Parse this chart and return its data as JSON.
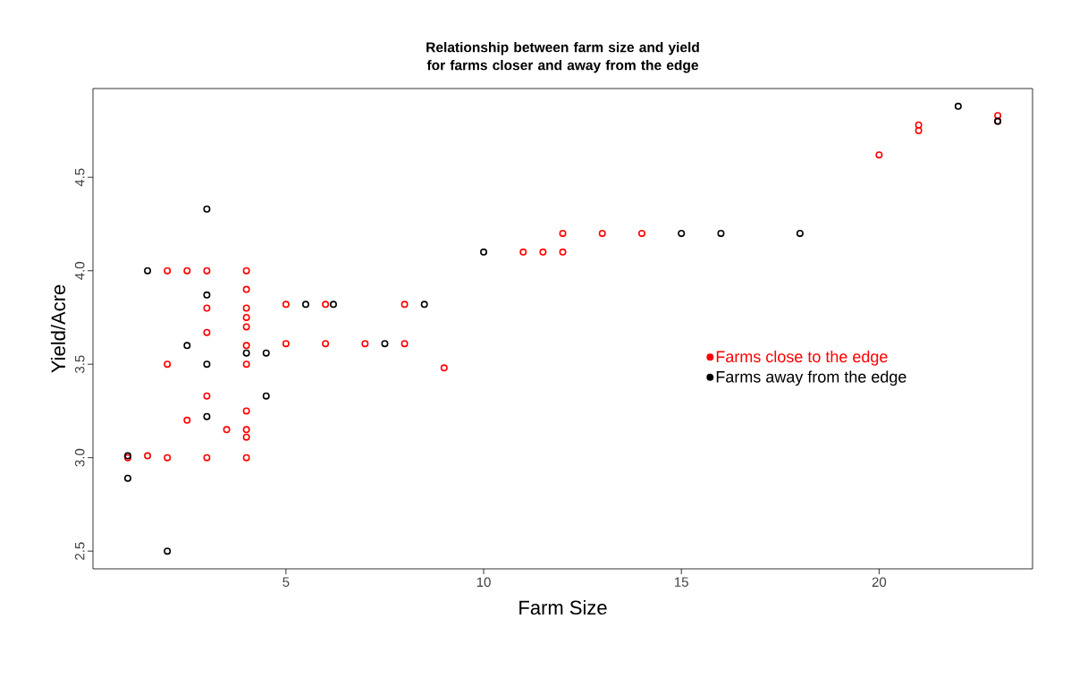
{
  "chart_data": {
    "type": "scatter",
    "title": "Relationship between farm size and yield for farms closer and away from the edge",
    "xlabel": "Farm Size",
    "ylabel": "Yield/Acre",
    "xlim": [
      0.12,
      23.88
    ],
    "ylim": [
      2.405,
      4.975
    ],
    "xticks": [
      5,
      10,
      15,
      20
    ],
    "yticks": [
      2.5,
      {
        "value": 3.0,
        "label": "3.0"
      },
      3.5,
      {
        "value": 4.0,
        "label": "4.0"
      },
      4.5
    ],
    "grid": false,
    "legend": "right",
    "marker": "circle",
    "series": [
      {
        "name": "Farms close to the edge",
        "color": "#ff0000",
        "x": [
          2,
          2.5,
          3,
          4,
          4,
          3,
          4,
          4,
          4,
          3,
          4,
          4,
          2,
          3,
          4,
          2.5,
          3.5,
          4,
          4,
          1,
          1.5,
          2,
          3,
          4,
          5,
          6,
          8,
          5,
          6,
          7,
          8,
          9,
          11,
          11.5,
          12,
          12,
          13,
          14,
          20,
          21,
          21,
          23,
          23
        ],
        "values": [
          4.0,
          4.0,
          4.0,
          4.0,
          3.9,
          3.8,
          3.8,
          3.75,
          3.7,
          3.67,
          3.6,
          3.5,
          3.5,
          3.33,
          3.25,
          3.2,
          3.15,
          3.15,
          3.11,
          3.0,
          3.01,
          3.0,
          3.0,
          3.0,
          3.82,
          3.82,
          3.82,
          3.61,
          3.61,
          3.61,
          3.61,
          3.48,
          4.1,
          4.1,
          4.1,
          4.2,
          4.2,
          4.2,
          4.62,
          4.78,
          4.75,
          4.83,
          4.8
        ]
      },
      {
        "name": "Farms away from the edge",
        "color": "#000000",
        "x": [
          1,
          1,
          1.5,
          2,
          2.5,
          3,
          3,
          3,
          3,
          4,
          4.5,
          4.5,
          5.5,
          6.2,
          7.5,
          8.5,
          10,
          15,
          16,
          18,
          22,
          23
        ],
        "values": [
          3.01,
          2.89,
          4.0,
          2.5,
          3.6,
          4.33,
          3.87,
          3.5,
          3.22,
          3.56,
          3.56,
          3.33,
          3.82,
          3.82,
          3.61,
          3.82,
          4.1,
          4.2,
          4.2,
          4.2,
          4.88,
          4.8
        ]
      }
    ]
  }
}
